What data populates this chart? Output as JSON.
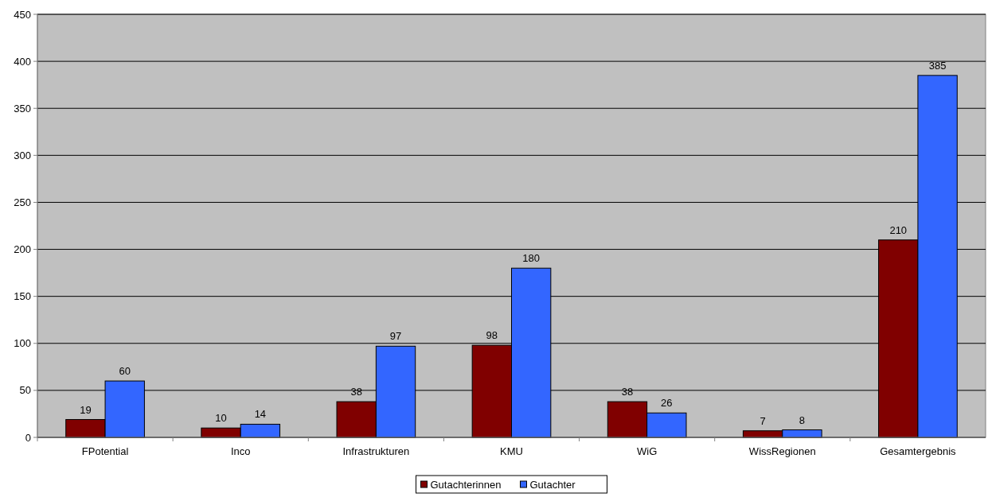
{
  "chart_data": {
    "type": "bar",
    "categories": [
      "FPotential",
      "Inco",
      "Infrastrukturen",
      "KMU",
      "WiG",
      "WissRegionen",
      "Gesamtergebnis"
    ],
    "series": [
      {
        "name": "Gutachterinnen",
        "color": "#800000",
        "values": [
          19,
          10,
          38,
          98,
          38,
          7,
          210
        ]
      },
      {
        "name": "Gutachter",
        "color": "#3366ff",
        "values": [
          60,
          14,
          97,
          180,
          26,
          8,
          385
        ]
      }
    ],
    "ylim": [
      0,
      450
    ],
    "yticks": [
      0,
      50,
      100,
      150,
      200,
      250,
      300,
      350,
      400,
      450
    ],
    "grid": "y",
    "legend": "bottom",
    "data_labels": true
  }
}
